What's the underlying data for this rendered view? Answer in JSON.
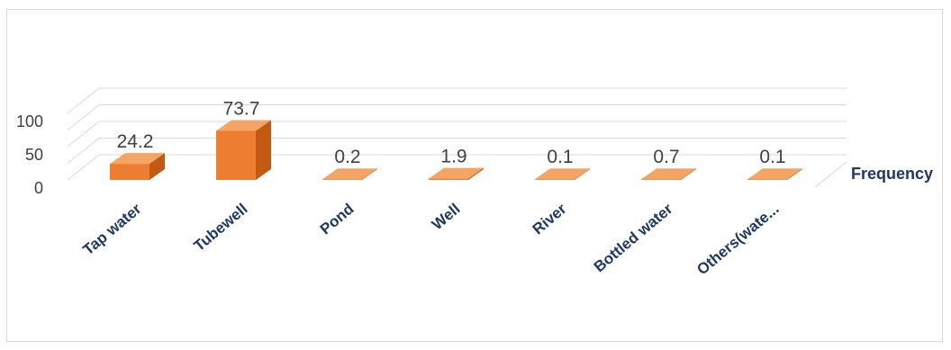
{
  "chart_data": {
    "type": "bar",
    "categories": [
      "Tap water",
      "Tubewell",
      "Pond",
      "Well",
      "River",
      "Bottled water",
      "Others(wate..."
    ],
    "series": [
      {
        "name": "Frequency",
        "values": [
          24.2,
          73.7,
          0.2,
          1.9,
          0.1,
          0.7,
          0.1
        ]
      }
    ],
    "data_labels": [
      "24.2",
      "73.7",
      "0.2",
      "1.9",
      "0.1",
      "0.7",
      "0.1"
    ],
    "ylim": [
      0,
      100
    ],
    "yticks": [
      "0",
      "50",
      "100"
    ],
    "grid": true,
    "style": "3d-column",
    "legend": {
      "position": "right",
      "label": "Frequency"
    },
    "colors": {
      "front": "#ed7d31",
      "top": "#f4a565",
      "side": "#c45a12",
      "grid": "#d9d9d9",
      "text": "#404040",
      "category_text": "#1f3864"
    }
  }
}
